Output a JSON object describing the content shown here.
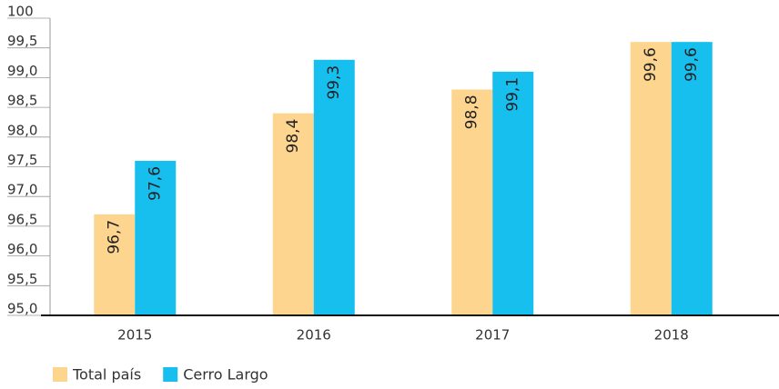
{
  "chart_data": {
    "type": "bar",
    "categories": [
      "2015",
      "2016",
      "2017",
      "2018"
    ],
    "series": [
      {
        "name": "Total país",
        "color": "#fdd58f",
        "values": [
          96.7,
          98.4,
          98.8,
          99.6
        ],
        "value_labels": [
          "96,7",
          "98,4",
          "98,8",
          "99,6"
        ]
      },
      {
        "name": "Cerro Largo",
        "color": "#17bfef",
        "values": [
          97.6,
          99.3,
          99.1,
          99.6
        ],
        "value_labels": [
          "97,6",
          "99,3",
          "99,1",
          "99,6"
        ]
      }
    ],
    "ylim": [
      95,
      100
    ],
    "yticks": [
      {
        "value": 95,
        "label": "95,0"
      },
      {
        "value": 95.5,
        "label": "95,5"
      },
      {
        "value": 96,
        "label": "96,0"
      },
      {
        "value": 96.5,
        "label": "96,5"
      },
      {
        "value": 97,
        "label": "97,0"
      },
      {
        "value": 97.5,
        "label": "97,5"
      },
      {
        "value": 98,
        "label": "98,0"
      },
      {
        "value": 98.5,
        "label": "98,5"
      },
      {
        "value": 99,
        "label": "99,0"
      },
      {
        "value": 99.5,
        "label": "99,5"
      },
      100
    ],
    "legend": "bottom-left"
  }
}
